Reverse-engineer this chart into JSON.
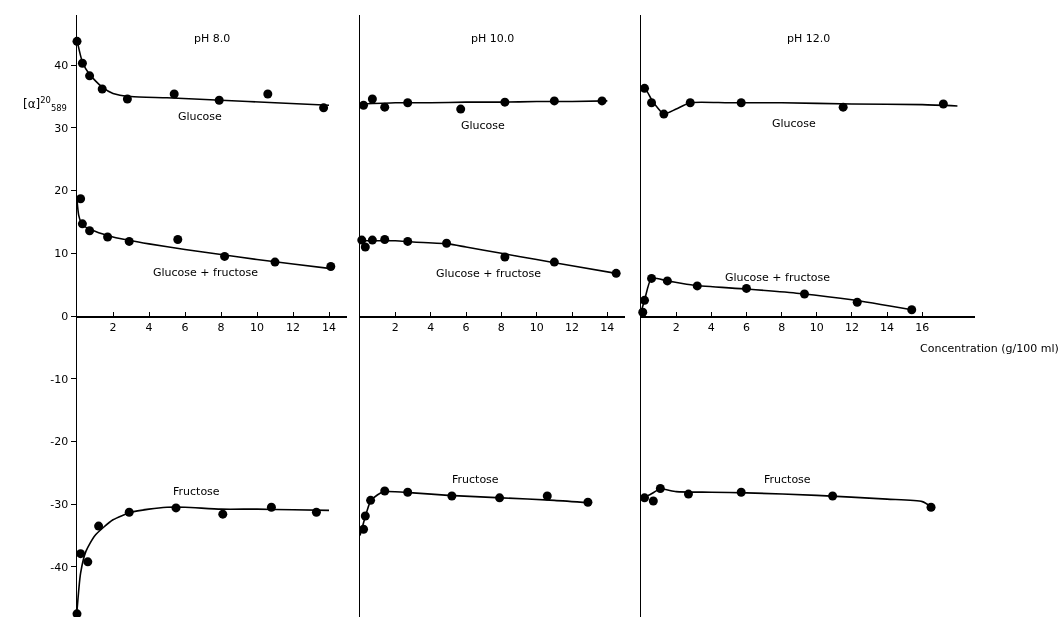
{
  "chart_data": [
    {
      "type": "scatter",
      "title": "pH 8.0",
      "ylabel": "[α]$^{20}$$_{589}$",
      "marker": "circle",
      "xlim": [
        0,
        15
      ],
      "xticks": [
        2,
        4,
        6,
        8,
        10,
        12,
        14
      ],
      "ylim": [
        -48,
        48
      ],
      "yticks": [
        -40,
        -30,
        -20,
        -10,
        0,
        10,
        20,
        30,
        40
      ],
      "series": [
        {
          "name": "Glucose",
          "color": "#000000",
          "x": [
            0,
            0.3,
            0.7,
            1.4,
            2.8,
            5.4,
            7.9,
            10.6,
            13.7
          ],
          "values": [
            43.8,
            40.3,
            38.3,
            36.2,
            34.6,
            35.4,
            34.4,
            35.4,
            33.2
          ]
        },
        {
          "type": "line",
          "marker": "none",
          "color": "#000000",
          "x": [
            0,
            0.3,
            0.7,
            1.4,
            2,
            3,
            5,
            8,
            11,
            14
          ],
          "values": [
            44,
            40.5,
            38.5,
            36.5,
            35.5,
            35,
            34.8,
            34.4,
            34,
            33.6
          ]
        },
        {
          "name": "Glucose + fructose",
          "color": "#000000",
          "x": [
            0.2,
            0.3,
            0.7,
            1.7,
            2.9,
            5.6,
            8.2,
            11.0,
            14.1
          ],
          "values": [
            18.7,
            14.7,
            13.6,
            12.6,
            11.9,
            12.2,
            9.5,
            8.6,
            7.9
          ]
        },
        {
          "type": "line",
          "marker": "none",
          "color": "#000000",
          "x": [
            0,
            0.1,
            0.3,
            1,
            2,
            3,
            4,
            6,
            8,
            10,
            12,
            14
          ],
          "values": [
            18.5,
            16,
            14.5,
            13.5,
            12.6,
            12,
            11.5,
            10.6,
            9.8,
            9.0,
            8.3,
            7.6
          ]
        },
        {
          "name": "Fructose",
          "color": "#000000",
          "x": [
            0,
            0.2,
            0.6,
            1.2,
            2.9,
            5.5,
            8.1,
            10.8,
            13.3
          ],
          "values": [
            -47.5,
            -37.9,
            -39.2,
            -33.5,
            -31.3,
            -30.6,
            -31.6,
            -30.5,
            -31.3
          ]
        },
        {
          "type": "line",
          "marker": "none",
          "color": "#000000",
          "x": [
            0,
            0.2,
            0.5,
            1,
            2,
            3,
            4,
            5,
            6,
            8,
            10,
            12,
            14
          ],
          "values": [
            -47,
            -41,
            -37.5,
            -35,
            -32.5,
            -31.3,
            -30.8,
            -30.5,
            -30.5,
            -30.8,
            -30.8,
            -30.9,
            -31
          ]
        }
      ]
    },
    {
      "type": "scatter",
      "title": "pH 10.0",
      "marker": "circle",
      "tick_labels": "x",
      "xlim": [
        0,
        15
      ],
      "xticks": [
        2,
        4,
        6,
        8,
        10,
        12,
        14
      ],
      "ylim": [
        -48,
        48
      ],
      "yticks": [
        -40,
        -30,
        -20,
        -10,
        0,
        10,
        20,
        30,
        40
      ],
      "series": [
        {
          "name": "Glucose",
          "color": "#000000",
          "x": [
            0.2,
            0.7,
            1.4,
            2.7,
            5.7,
            8.2,
            11.0,
            13.7
          ],
          "values": [
            33.6,
            34.6,
            33.3,
            34.0,
            33.0,
            34.1,
            34.3,
            34.3
          ]
        },
        {
          "type": "line",
          "marker": "none",
          "color": "#000000",
          "x": [
            0,
            2,
            4,
            6,
            8,
            10,
            12,
            14
          ],
          "values": [
            33.8,
            34,
            34,
            34.1,
            34.1,
            34.2,
            34.2,
            34.3
          ]
        },
        {
          "name": "Glucose + fructose",
          "color": "#000000",
          "x": [
            0.1,
            0.3,
            0.7,
            1.4,
            2.7,
            4.9,
            8.2,
            11.0,
            14.5
          ],
          "values": [
            12.1,
            11.0,
            12.1,
            12.2,
            11.9,
            11.6,
            9.4,
            8.6,
            6.8
          ]
        },
        {
          "type": "line",
          "marker": "none",
          "color": "#000000",
          "x": [
            0,
            1,
            2,
            3,
            5,
            6,
            8,
            10,
            12,
            14.5
          ],
          "values": [
            12,
            12,
            12,
            11.8,
            11.5,
            11,
            10,
            9,
            8,
            6.8
          ]
        },
        {
          "name": "Fructose",
          "color": "#000000",
          "x": [
            0.2,
            0.3,
            0.6,
            1.4,
            2.7,
            5.2,
            7.9,
            10.6,
            12.9
          ],
          "values": [
            -34.0,
            -31.9,
            -29.4,
            -27.9,
            -28.1,
            -28.7,
            -29.0,
            -28.7,
            -29.7
          ]
        },
        {
          "type": "line",
          "marker": "none",
          "color": "#000000",
          "x": [
            0,
            0.3,
            0.6,
            1,
            1.4,
            3,
            5,
            8,
            11,
            13
          ],
          "values": [
            -35,
            -32,
            -29.5,
            -28.5,
            -28,
            -28.2,
            -28.6,
            -29,
            -29.4,
            -29.8
          ]
        }
      ]
    },
    {
      "type": "scatter",
      "title": "pH 12.0",
      "xlabel": "Concentration (g/100 ml)",
      "marker": "circle",
      "tick_labels": "x",
      "xlim": [
        0,
        19
      ],
      "xticks": [
        2,
        4,
        6,
        8,
        10,
        12,
        14,
        16
      ],
      "ylim": [
        -48,
        48
      ],
      "yticks": [
        -40,
        -30,
        -20,
        -10,
        0,
        10,
        20,
        30,
        40
      ],
      "series": [
        {
          "name": "Glucose",
          "color": "#000000",
          "x": [
            0.2,
            0.6,
            1.3,
            2.8,
            5.7,
            11.5,
            17.2
          ],
          "values": [
            36.3,
            34.0,
            32.2,
            34.0,
            34.0,
            33.3,
            33.8
          ]
        },
        {
          "type": "line",
          "marker": "none",
          "color": "#000000",
          "x": [
            0,
            0.3,
            0.6,
            1,
            1.3,
            2,
            2.8,
            5,
            8,
            12,
            16,
            18
          ],
          "values": [
            36.5,
            36,
            34.5,
            33,
            32.2,
            33,
            34,
            34,
            34,
            33.8,
            33.7,
            33.5
          ]
        },
        {
          "name": "Glucose + fructose",
          "color": "#000000",
          "x": [
            0.1,
            0.2,
            0.6,
            1.5,
            3.2,
            6.0,
            9.3,
            12.3,
            15.4
          ],
          "values": [
            0.6,
            2.5,
            6.0,
            5.6,
            4.8,
            4.4,
            3.5,
            2.2,
            1.0
          ]
        },
        {
          "type": "line",
          "marker": "none",
          "color": "#000000",
          "x": [
            0,
            0.2,
            0.6,
            1.5,
            3,
            6,
            9,
            12,
            15.4
          ],
          "values": [
            0.6,
            2.5,
            6,
            5.6,
            4.9,
            4.3,
            3.6,
            2.6,
            1.0
          ]
        },
        {
          "name": "Fructose",
          "color": "#000000",
          "x": [
            0.2,
            0.7,
            1.1,
            2.7,
            5.7,
            10.9,
            16.5
          ],
          "values": [
            -29.0,
            -29.5,
            -27.5,
            -28.4,
            -28.1,
            -28.7,
            -30.5
          ]
        },
        {
          "type": "line",
          "marker": "none",
          "color": "#000000",
          "x": [
            0,
            0.5,
            1.1,
            2,
            4,
            6,
            10,
            14,
            16,
            16.5
          ],
          "values": [
            -29,
            -28.5,
            -27.6,
            -28,
            -28.1,
            -28.2,
            -28.6,
            -29.2,
            -29.6,
            -30.4
          ]
        }
      ]
    }
  ]
}
